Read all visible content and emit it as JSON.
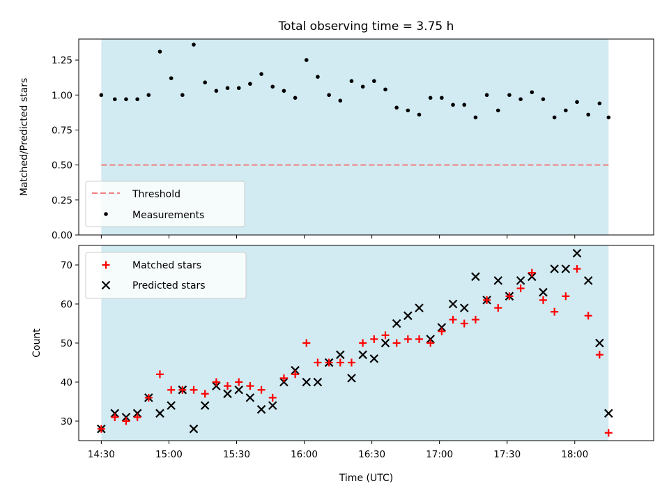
{
  "chart_data": [
    {
      "type": "scatter",
      "title": "Total observing time = 3.75 h",
      "ylabel": "Matched/Predicted stars",
      "xlabel": "",
      "xlim": [
        "14:20",
        "18:35"
      ],
      "ylim": [
        0,
        1.4
      ],
      "yticks": [
        "0.00",
        "0.25",
        "0.50",
        "0.75",
        "1.00",
        "1.25"
      ],
      "shaded_span": [
        "14:30",
        "18:15"
      ],
      "shade_color": "#add8e6",
      "threshold": 0.5,
      "threshold_color": "#f08080",
      "legend_position": "lower left",
      "legend": [
        "Threshold",
        "Measurements"
      ],
      "x": [
        "14:30",
        "14:36",
        "14:41",
        "14:46",
        "14:51",
        "14:56",
        "15:01",
        "15:06",
        "15:11",
        "15:16",
        "15:21",
        "15:26",
        "15:31",
        "15:36",
        "15:41",
        "15:46",
        "15:51",
        "15:56",
        "16:01",
        "16:06",
        "16:11",
        "16:16",
        "16:21",
        "16:26",
        "16:31",
        "16:36",
        "16:41",
        "16:46",
        "16:51",
        "16:56",
        "17:01",
        "17:06",
        "17:11",
        "17:16",
        "17:21",
        "17:26",
        "17:31",
        "17:36",
        "17:41",
        "17:46",
        "17:51",
        "17:56",
        "18:01",
        "18:06",
        "18:11",
        "18:15"
      ],
      "series": [
        {
          "name": "Measurements",
          "color": "#000000",
          "values": [
            1.0,
            0.97,
            0.97,
            0.97,
            1.0,
            1.31,
            1.12,
            1.0,
            1.36,
            1.09,
            1.03,
            1.05,
            1.05,
            1.08,
            1.15,
            1.06,
            1.03,
            0.98,
            1.25,
            1.13,
            1.0,
            0.96,
            1.1,
            1.06,
            1.1,
            1.04,
            0.91,
            0.89,
            0.86,
            0.98,
            0.98,
            0.93,
            0.93,
            0.84,
            1.0,
            0.89,
            1.0,
            0.97,
            1.02,
            0.97,
            0.84,
            0.89,
            0.95,
            0.86,
            0.94,
            0.84
          ]
        }
      ]
    },
    {
      "type": "scatter",
      "title": "",
      "ylabel": "Count",
      "xlabel": "Time (UTC)",
      "xlim": [
        "14:20",
        "18:35"
      ],
      "ylim": [
        25,
        75
      ],
      "yticks": [
        "30",
        "40",
        "50",
        "60",
        "70"
      ],
      "xticks": [
        "14:30",
        "15:00",
        "15:30",
        "16:00",
        "16:30",
        "17:00",
        "17:30",
        "18:00"
      ],
      "shaded_span": [
        "14:30",
        "18:15"
      ],
      "shade_color": "#add8e6",
      "legend_position": "upper left",
      "legend": [
        "Matched stars",
        "Predicted stars"
      ],
      "x": [
        "14:30",
        "14:36",
        "14:41",
        "14:46",
        "14:51",
        "14:56",
        "15:01",
        "15:06",
        "15:11",
        "15:16",
        "15:21",
        "15:26",
        "15:31",
        "15:36",
        "15:41",
        "15:46",
        "15:51",
        "15:56",
        "16:01",
        "16:06",
        "16:11",
        "16:16",
        "16:21",
        "16:26",
        "16:31",
        "16:36",
        "16:41",
        "16:46",
        "16:51",
        "16:56",
        "17:01",
        "17:06",
        "17:11",
        "17:16",
        "17:21",
        "17:26",
        "17:31",
        "17:36",
        "17:41",
        "17:46",
        "17:51",
        "17:56",
        "18:01",
        "18:06",
        "18:11",
        "18:15"
      ],
      "series": [
        {
          "name": "Matched stars",
          "color": "#ff0000",
          "marker": "+",
          "values": [
            28,
            31,
            30,
            31,
            36,
            42,
            38,
            38,
            38,
            37,
            40,
            39,
            40,
            39,
            38,
            36,
            41,
            42,
            50,
            45,
            45,
            45,
            45,
            50,
            51,
            52,
            50,
            51,
            51,
            50,
            53,
            56,
            55,
            56,
            61,
            59,
            62,
            64,
            68,
            61,
            58,
            62,
            69,
            57,
            47,
            27
          ]
        },
        {
          "name": "Predicted stars",
          "color": "#000000",
          "marker": "x",
          "values": [
            28,
            32,
            31,
            32,
            36,
            32,
            34,
            38,
            28,
            34,
            39,
            37,
            38,
            36,
            33,
            34,
            40,
            43,
            40,
            40,
            45,
            47,
            41,
            47,
            46,
            50,
            55,
            57,
            59,
            51,
            54,
            60,
            59,
            67,
            61,
            66,
            62,
            66,
            67,
            63,
            69,
            69,
            73,
            66,
            50,
            32
          ]
        }
      ]
    }
  ]
}
